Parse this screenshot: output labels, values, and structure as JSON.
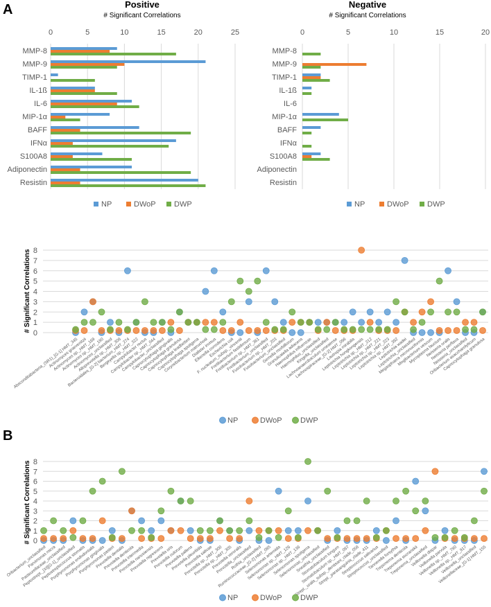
{
  "panels": {
    "a_label": "A",
    "b_label": "B"
  },
  "legend": {
    "np": "NP",
    "dwop": "DWoP",
    "dwp": "DWP"
  },
  "colors": {
    "NP": "#5B9BD5",
    "DWoP": "#ED7D31",
    "DWP": "#70AD47",
    "grid": "#D9D9D9"
  },
  "chart_data": [
    {
      "type": "bar",
      "orientation": "horizontal",
      "title": "Positive",
      "xlabel": "# Significant Correlations",
      "xlim": [
        0,
        25
      ],
      "xticks": [
        "0",
        "5",
        "10",
        "15",
        "20",
        "25"
      ],
      "categories": [
        "MMP-8",
        "MMP-9",
        "TIMP-1",
        "IL-1ß",
        "IL-6",
        "MIP-1α",
        "BAFF",
        "IFNα",
        "S100A8",
        "Adiponectin",
        "Resistin"
      ],
      "series": [
        {
          "name": "NP",
          "values": [
            9,
            21,
            1,
            6,
            11,
            8,
            12,
            17,
            7,
            11,
            20
          ]
        },
        {
          "name": "DWoP",
          "values": [
            8,
            10,
            0,
            6,
            9,
            2,
            4,
            3,
            3,
            4,
            4
          ]
        },
        {
          "name": "DWP",
          "values": [
            17,
            9,
            6,
            9,
            12,
            4,
            19,
            16,
            11,
            19,
            21
          ]
        }
      ],
      "legend": "bottom"
    },
    {
      "type": "bar",
      "orientation": "horizontal",
      "title": "Negative",
      "xlabel": "# Significant Correlations",
      "xlim": [
        0,
        20
      ],
      "xticks": [
        "0",
        "5",
        "10",
        "15",
        "20"
      ],
      "categories": [
        "MMP-8",
        "MMP-9",
        "TIMP-1",
        "IL-1ß",
        "IL-6",
        "MIP-1α",
        "BAFF",
        "IFNα",
        "S100A8",
        "Adiponectin",
        "Resistin"
      ],
      "series": [
        {
          "name": "NP",
          "values": [
            0,
            0,
            2,
            1,
            0,
            4,
            2,
            0,
            2,
            0,
            0
          ]
        },
        {
          "name": "DWoP",
          "values": [
            0,
            7,
            2,
            0,
            0,
            0,
            0,
            0,
            1,
            0,
            0
          ]
        },
        {
          "name": "DWP",
          "values": [
            2,
            2,
            3,
            1,
            0,
            5,
            1,
            1,
            3,
            0,
            0
          ]
        }
      ],
      "legend": "bottom"
    },
    {
      "type": "scatter",
      "ylabel": "# Significant Correlations",
      "ylim": [
        0,
        8
      ],
      "yticks": [
        "0",
        "1",
        "2",
        "3",
        "4",
        "5",
        "6",
        "7",
        "8"
      ],
      "categories": [
        "Absconditabacteria_(SR1)_[G-1] HMT_345",
        "Actinomyces graevenitzii",
        "Actinomyces sp._HMT_169",
        "Actinomyces sp._HMT_180",
        "Actinomyces_unclassified",
        "Alloprevotella sp._HMT_308",
        "Bacteroidales_[G-2] bacterium_HMT_274",
        "Bergeyella sp._HMT_322",
        "Campylobacter rectus",
        "Campylobacter sp._HMT_044",
        "Campylobacter_unclassified",
        "Capnocytophaga gingivalis",
        "Capnocytophaga granulosa",
        "Capnocytophaga leadbetteri",
        "Capnocytophaga sputigena",
        "Corynebacterium matruchotii",
        "Dialister invisus",
        "Eikenella corrodens",
        "Escherichia coli",
        "F. nucleatum_subsp._vincentii",
        "Fretibacterium fastidiosum",
        "Fretibacterium sp._HMT_361",
        "Fretibacterium_unclassified",
        "Fusobacterium sp._HMT_203",
        "Fusobacterium_unclassified",
        "Gemella morbillorum",
        "Granulicatella adiacens",
        "Haemophilus influenzae",
        "Haemophilus_unclassified",
        "Kingella_unclassified",
        "Lachnoanaerobaculum umeaense",
        "Lachnospiraceae_[G-2] HMT_096",
        "Lautropia mirabilis",
        "Leptotrichia hongkongensis",
        "Leptotrichia sp._HMT_212",
        "Leptotrichia sp._HMT_221",
        "Leptotrichia sp._HMT_223",
        "Leptotrichia sp._HMT_392",
        "Leptotrichia wadei",
        "Leptotrichia_unclassified",
        "Megasphaera micronuciformis",
        "Mogibacterium vescum",
        "Mycoplasma faucium",
        "Neisseria oralis",
        "Neisseria perflava",
        "Neisseria_unclassified",
        "Oribacterium asaccharolyticum",
        "Capnocytophaga granulosa"
      ],
      "series": [
        {
          "name": "NP",
          "values": [
            0,
            2,
            3,
            0,
            1,
            0,
            6,
            1,
            0,
            0,
            1,
            0,
            2,
            1,
            1,
            4,
            6,
            2,
            0,
            0,
            3,
            0,
            6,
            3,
            1,
            0,
            0,
            1,
            1,
            1,
            1,
            1,
            2,
            1,
            2,
            1,
            2,
            1,
            7,
            0,
            0,
            0,
            0,
            6,
            3,
            0,
            0,
            2
          ]
        },
        {
          "name": "DWoP",
          "values": [
            0,
            0,
            3,
            0,
            0,
            0,
            0,
            0,
            0,
            0,
            0,
            1,
            0,
            1,
            1,
            1,
            1,
            0,
            0,
            1,
            0,
            0,
            0,
            0,
            0,
            1,
            1,
            1,
            0,
            1,
            0,
            0,
            0,
            8,
            1,
            0,
            0,
            0,
            2,
            1,
            2,
            3,
            0,
            0,
            0,
            1,
            1,
            0
          ]
        },
        {
          "name": "DWP",
          "values": [
            0,
            1,
            1,
            2,
            0,
            1,
            0,
            1,
            3,
            1,
            1,
            0,
            2,
            1,
            1,
            0,
            0,
            1,
            3,
            5,
            4,
            5,
            1,
            0,
            0,
            2,
            1,
            1,
            0,
            0,
            1,
            0,
            0,
            0,
            0,
            0,
            0,
            3,
            2,
            0,
            1,
            2,
            5,
            2,
            2,
            0,
            0,
            2
          ]
        }
      ],
      "legend": "bottom"
    },
    {
      "type": "scatter",
      "ylabel": "# Significant Correlations",
      "ylim": [
        0,
        8
      ],
      "yticks": [
        "0",
        "1",
        "2",
        "3",
        "4",
        "5",
        "6",
        "7",
        "8"
      ],
      "categories": [
        "Oribacterium_unclassified",
        "Parvimonas micra",
        "Pasteurellaceae_unclassified",
        "Peptostrept._[XI][G-1]_unclassified",
        "Peptostreptococcus stomatis",
        "Porphyromonas endodontalis",
        "Porphyromonas gingivalis",
        "Porphyromonas pasteri",
        "Prevotella dentalis",
        "Prevotella denticola",
        "Prevotella intermedia",
        "Prevotella nanceiensis",
        "Prevotella nigrescens",
        "Prevotella oris",
        "Prevotella oulorum",
        "Prevotella pallens",
        "Prevotella pleuritidis",
        "Prevotella salivae",
        "Prevotella sp._HMT_300",
        "Prevotella sp._HMT_305",
        "Prevotella veroralis",
        "Prevotella_unclassified",
        "Rothia_unclassified",
        "Ruminococcaceae_[G-2] HMT_085",
        "Selenomonas artemidis",
        "Selenomonas sp._HMT_126",
        "Selenomonas sp._HMT_136",
        "Selenomonas sputigena",
        "Selenomonas_unclassified",
        "Sneathia_unclassified",
        "Stomatobaculum longum",
        "Stomatobaculum sp._HMT_097",
        "Strept._oralis_subsp._dentisani_clade_058",
        "Strept._parasanguinis_clade_411",
        "Streptococcus salivarius",
        "Streptococcus_unclassified",
        "Tannerella forsythia",
        "Treponema denticola",
        "Treponema socranskii",
        "Treponema_unclassified",
        "Veillonella dispar",
        "Veillonella parvula",
        "Veillonella sp._HMT_780",
        "Veillonella sp._HMT_917",
        "Veillonella_unclassified",
        "Veillonellaceae_[G-1] HMT_155"
      ],
      "series": [
        {
          "name": "NP",
          "values": [
            0,
            0,
            0,
            2,
            0,
            0,
            0,
            1,
            0,
            3,
            2,
            1,
            2,
            1,
            4,
            1,
            0,
            0,
            2,
            1,
            0,
            1,
            0,
            0,
            5,
            1,
            1,
            4,
            1,
            0,
            1,
            0,
            0,
            0,
            1,
            0,
            2,
            0,
            6,
            3,
            0,
            1,
            0,
            0,
            0,
            7
          ]
        },
        {
          "name": "DWoP",
          "values": [
            0,
            0,
            0,
            1,
            0,
            0,
            2,
            0,
            0,
            3,
            0,
            0,
            0,
            1,
            1,
            0,
            0,
            0,
            1,
            0,
            0,
            4,
            1,
            1,
            1,
            0,
            0,
            1,
            1,
            0,
            0,
            0,
            0,
            0,
            0,
            1,
            0,
            0,
            0,
            1,
            7,
            0,
            0,
            0,
            0,
            0
          ]
        },
        {
          "name": "DWP",
          "values": [
            1,
            2,
            1,
            0,
            2,
            5,
            6,
            0,
            7,
            1,
            1,
            0,
            3,
            5,
            4,
            4,
            1,
            1,
            2,
            1,
            1,
            2,
            0,
            1,
            0,
            3,
            0,
            8,
            1,
            5,
            0,
            2,
            2,
            4,
            0,
            1,
            4,
            5,
            3,
            4,
            0,
            0,
            1,
            0,
            2,
            5
          ]
        }
      ],
      "legend": "bottom"
    }
  ]
}
